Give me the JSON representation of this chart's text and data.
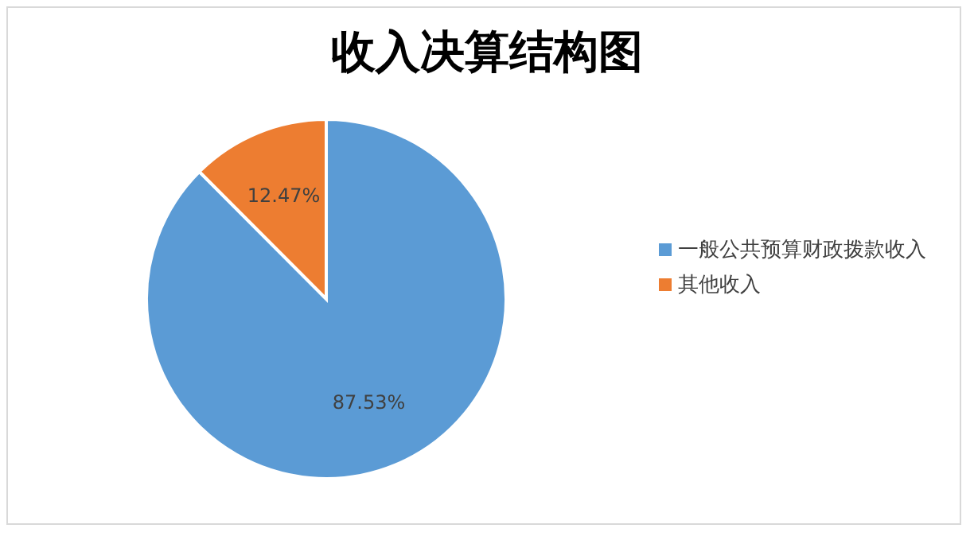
{
  "chart_data": {
    "type": "pie",
    "title": "收入决算结构图",
    "categories": [
      "一般公共预算财政拨款收入",
      "其他收入"
    ],
    "values": [
      87.53,
      12.47
    ],
    "value_labels": [
      "87.53%",
      "12.47%"
    ],
    "colors": [
      "#5b9bd5",
      "#ed7d31"
    ],
    "legend": "right"
  }
}
